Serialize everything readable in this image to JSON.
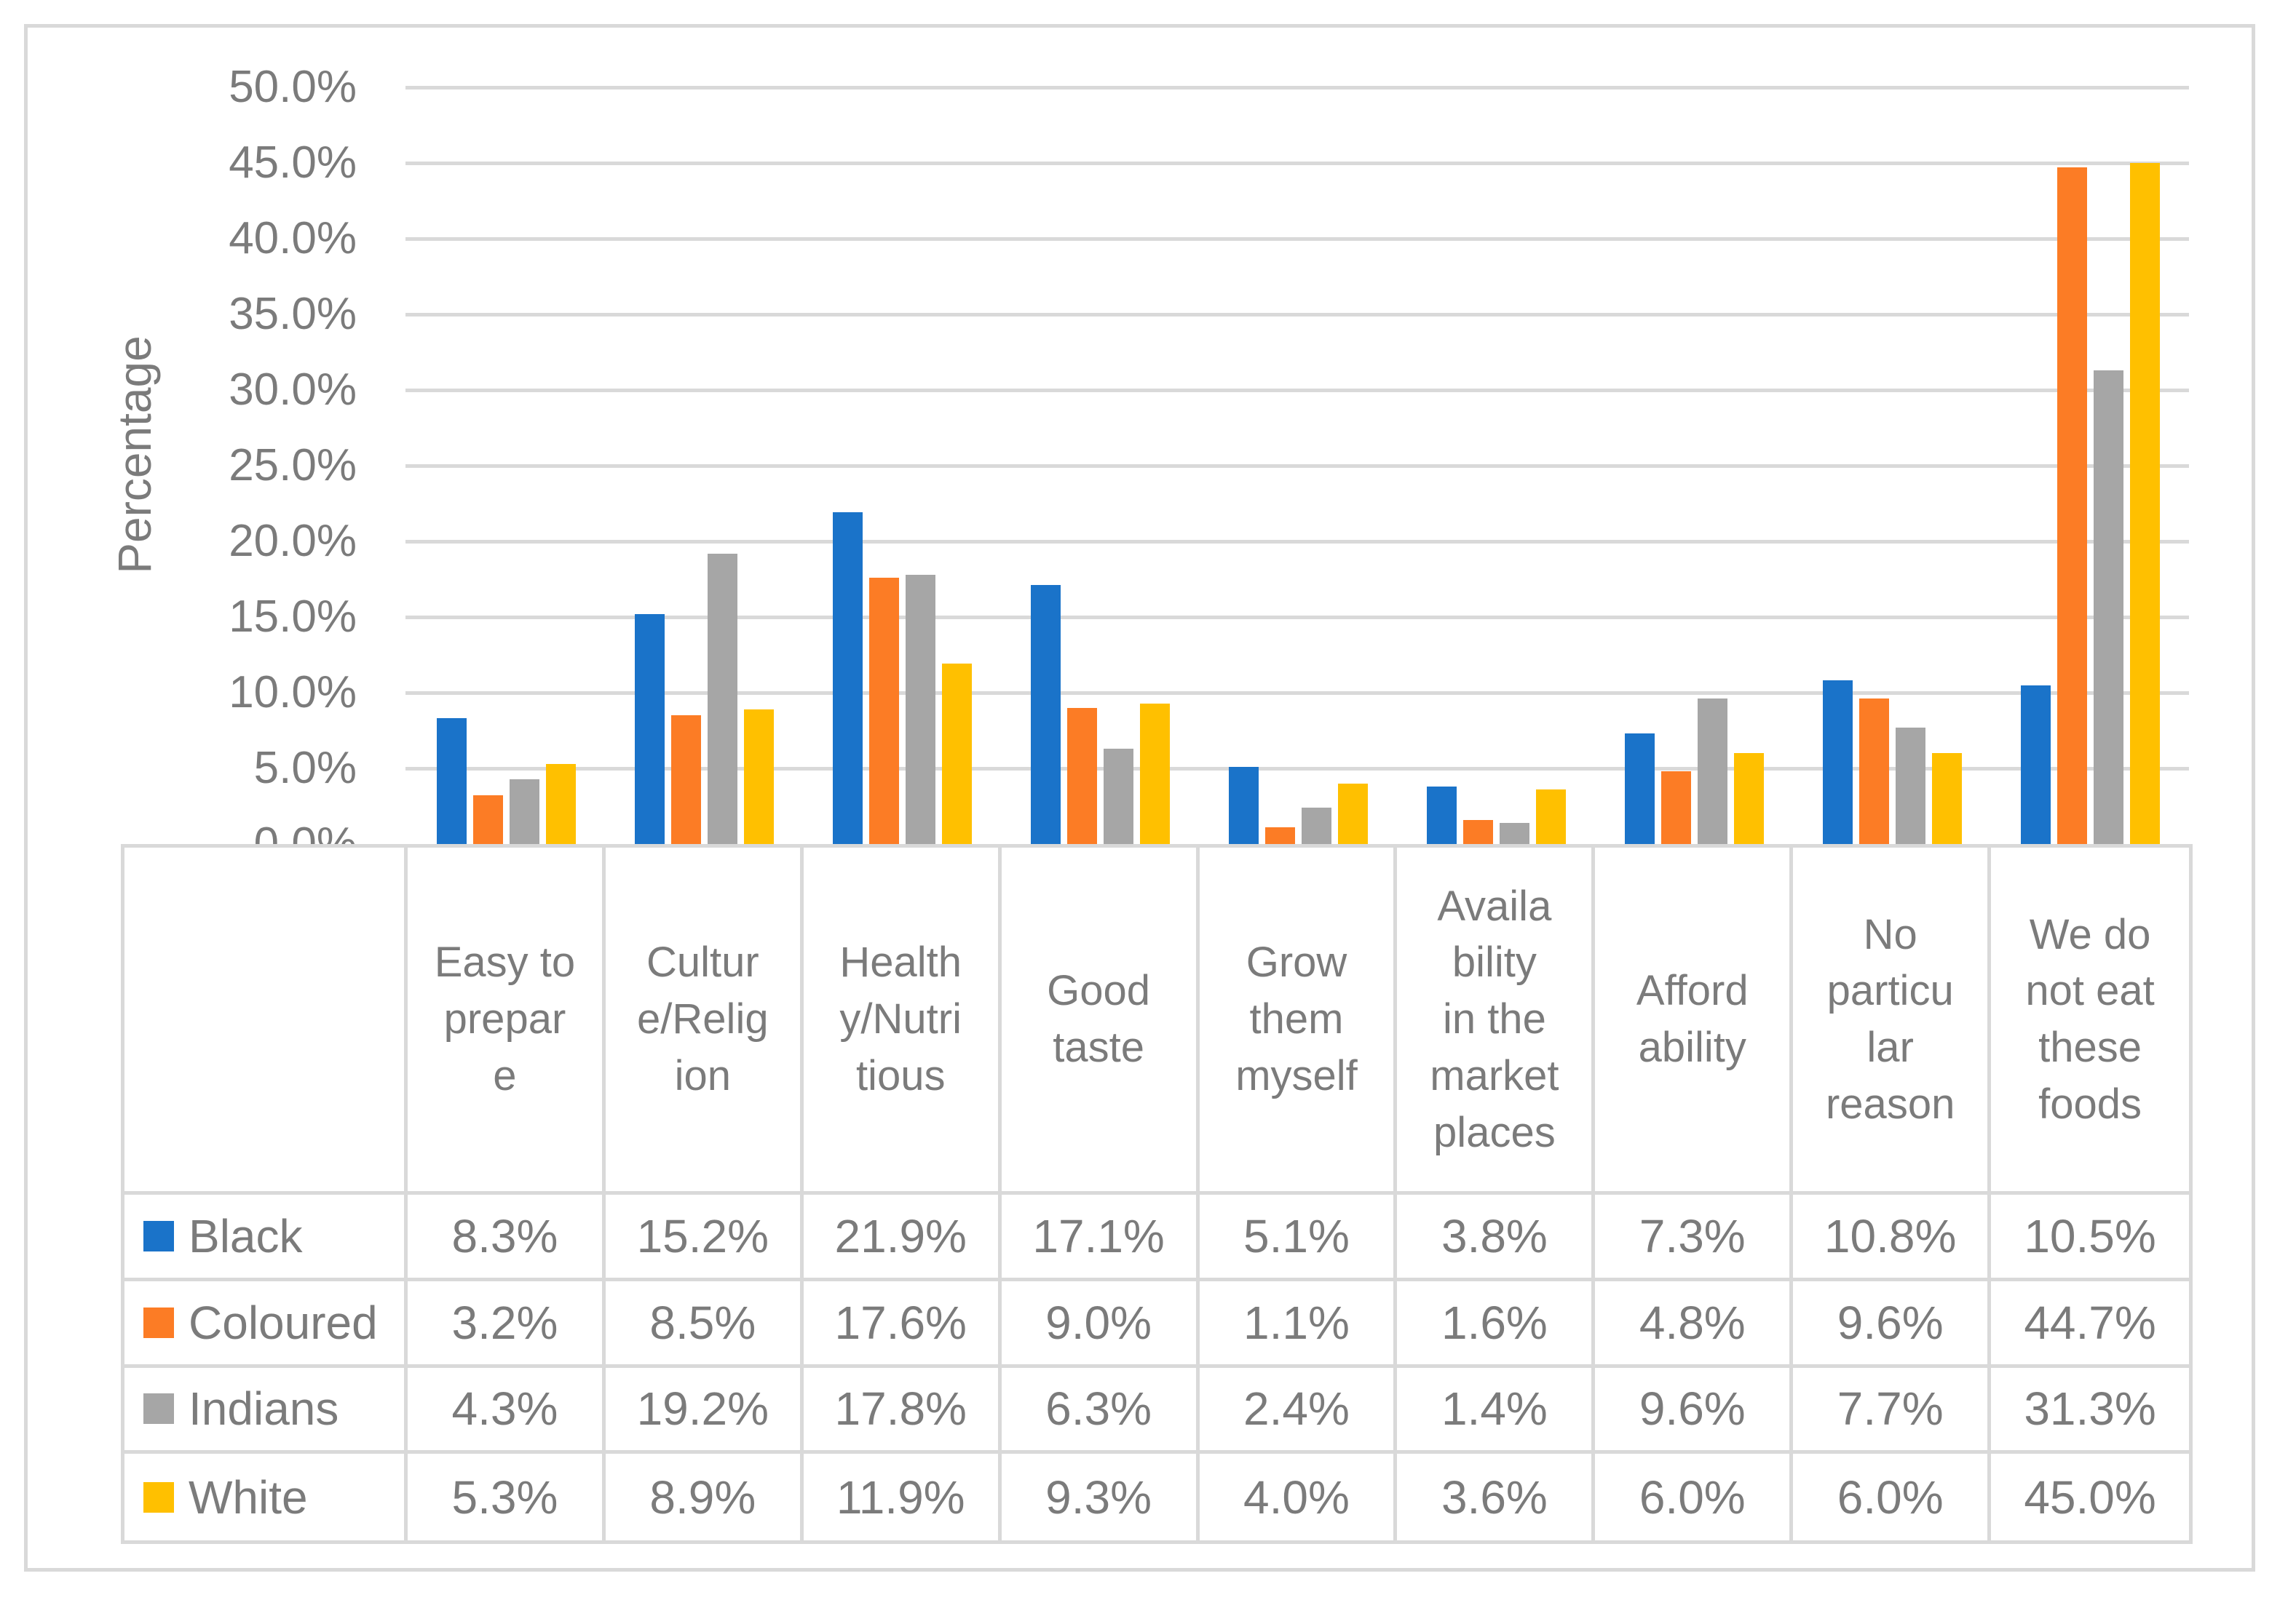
{
  "figure": {
    "type_note": "clustered-column-chart-with-data-table"
  },
  "colors": {
    "series_black": "#1A73C9",
    "series_coloured": "#FC7C25",
    "series_indians": "#A6A6A6",
    "series_white": "#FFC000",
    "gridline": "#D9D9D9",
    "border": "#D9D9D9",
    "text": "#7B7B7B"
  },
  "chart_data": {
    "type": "bar",
    "title": "",
    "xlabel": "",
    "ylabel": "Percentage",
    "ylim": [
      0,
      50
    ],
    "grid": true,
    "legend_position": "data-table-left-column",
    "y_ticks": [
      "50.0%",
      "45.0%",
      "40.0%",
      "35.0%",
      "30.0%",
      "25.0%",
      "20.0%",
      "15.0%",
      "10.0%",
      "5.0%",
      "0.0%"
    ],
    "categories": [
      "Easy to prepare",
      "Culture/Religion",
      "Healthy/Nutritious",
      "Good taste",
      "Grow them myself",
      "Availability in the market places",
      "Affordability",
      "No particular reason",
      "We do not eat these foods"
    ],
    "categories_display": [
      "Easy to\nprepar\ne",
      "Cultur\ne/Relig\nion",
      "Health\ny/Nutri\ntious",
      "Good\ntaste",
      "Grow\nthem\nmyself",
      "Availa\nbility\nin the\nmarket\nplaces",
      "Afford\nability",
      "No\nparticu\nlar\nreason",
      "We do\nnot eat\nthese\nfoods"
    ],
    "series": [
      {
        "name": "Black",
        "color": "#1A73C9",
        "values": [
          8.3,
          15.2,
          21.9,
          17.1,
          5.1,
          3.8,
          7.3,
          10.8,
          10.5
        ],
        "display": [
          "8.3%",
          "15.2%",
          "21.9%",
          "17.1%",
          "5.1%",
          "3.8%",
          "7.3%",
          "10.8%",
          "10.5%"
        ]
      },
      {
        "name": "Coloured",
        "color": "#FC7C25",
        "values": [
          3.2,
          8.5,
          17.6,
          9.0,
          1.1,
          1.6,
          4.8,
          9.6,
          44.7
        ],
        "display": [
          "3.2%",
          "8.5%",
          "17.6%",
          "9.0%",
          "1.1%",
          "1.6%",
          "4.8%",
          "9.6%",
          "44.7%"
        ]
      },
      {
        "name": "Indians",
        "color": "#A6A6A6",
        "values": [
          4.3,
          19.2,
          17.8,
          6.3,
          2.4,
          1.4,
          9.6,
          7.7,
          31.3
        ],
        "display": [
          "4.3%",
          "19.2%",
          "17.8%",
          "6.3%",
          "2.4%",
          "1.4%",
          "9.6%",
          "7.7%",
          "31.3%"
        ]
      },
      {
        "name": "White",
        "color": "#FFC000",
        "values": [
          5.3,
          8.9,
          11.9,
          9.3,
          4.0,
          3.6,
          6.0,
          6.0,
          45.0
        ],
        "display": [
          "5.3%",
          "8.9%",
          "11.9%",
          "9.3%",
          "4.0%",
          "3.6%",
          "6.0%",
          "6.0%",
          "45.0%"
        ]
      }
    ]
  }
}
